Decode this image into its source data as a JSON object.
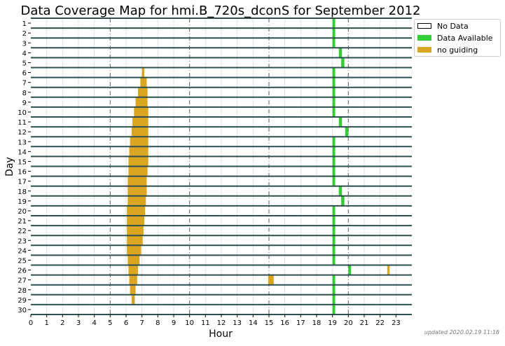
{
  "chart_data": {
    "type": "bar",
    "title": "Data Coverage Map for hmi.B_720s_dconS for September 2012",
    "xlabel": "Hour",
    "ylabel": "Day",
    "xlim": [
      0,
      24
    ],
    "ylim": [
      1,
      30
    ],
    "x_ticks": [
      "0",
      "1",
      "2",
      "3",
      "4",
      "5",
      "6",
      "7",
      "8",
      "9",
      "10",
      "11",
      "12",
      "13",
      "14",
      "15",
      "16",
      "17",
      "18",
      "19",
      "20",
      "21",
      "22",
      "23"
    ],
    "y_ticks": [
      "1",
      "2",
      "3",
      "4",
      "5",
      "6",
      "7",
      "8",
      "9",
      "10",
      "11",
      "12",
      "13",
      "14",
      "15",
      "16",
      "17",
      "18",
      "19",
      "20",
      "21",
      "22",
      "23",
      "24",
      "25",
      "26",
      "27",
      "28",
      "29",
      "30"
    ],
    "grid": true,
    "legend": {
      "placement": "outside-top-right",
      "entries": [
        {
          "label": "No Data",
          "color": "#ffffff"
        },
        {
          "label": "Data Available",
          "color": "#32cd32"
        },
        {
          "label": "no guiding",
          "color": "#daa520"
        }
      ]
    },
    "series": [
      {
        "name": "Data Available",
        "color": "#32cd32",
        "intervals": [
          [
            1,
            19.0,
            19.17
          ],
          [
            2,
            19.0,
            19.17
          ],
          [
            3,
            19.0,
            19.17
          ],
          [
            4,
            19.4,
            19.6
          ],
          [
            5,
            19.55,
            19.75
          ],
          [
            6,
            19.0,
            19.17
          ],
          [
            7,
            19.0,
            19.17
          ],
          [
            8,
            19.0,
            19.17
          ],
          [
            9,
            19.0,
            19.17
          ],
          [
            10,
            19.0,
            19.17
          ],
          [
            11,
            19.4,
            19.6
          ],
          [
            12,
            19.8,
            20.0
          ],
          [
            13,
            19.0,
            19.17
          ],
          [
            14,
            19.0,
            19.17
          ],
          [
            15,
            19.0,
            19.17
          ],
          [
            16,
            19.0,
            19.17
          ],
          [
            17,
            19.0,
            19.17
          ],
          [
            18,
            19.4,
            19.6
          ],
          [
            19,
            19.55,
            19.75
          ],
          [
            20,
            19.0,
            19.17
          ],
          [
            21,
            19.0,
            19.17
          ],
          [
            22,
            19.0,
            19.17
          ],
          [
            23,
            19.0,
            19.17
          ],
          [
            24,
            19.0,
            19.17
          ],
          [
            25,
            19.0,
            19.17
          ],
          [
            26,
            20.0,
            20.17
          ],
          [
            27,
            19.0,
            19.17
          ],
          [
            28,
            19.0,
            19.17
          ],
          [
            29,
            19.0,
            19.17
          ],
          [
            30,
            19.0,
            19.17
          ]
        ]
      },
      {
        "name": "no guiding",
        "color": "#daa520",
        "intervals": [
          [
            6,
            7.0,
            7.15
          ],
          [
            7,
            6.9,
            7.3
          ],
          [
            8,
            6.75,
            7.35
          ],
          [
            9,
            6.6,
            7.35
          ],
          [
            10,
            6.5,
            7.4
          ],
          [
            11,
            6.4,
            7.4
          ],
          [
            12,
            6.35,
            7.4
          ],
          [
            13,
            6.25,
            7.4
          ],
          [
            14,
            6.2,
            7.4
          ],
          [
            15,
            6.15,
            7.4
          ],
          [
            16,
            6.15,
            7.35
          ],
          [
            17,
            6.1,
            7.3
          ],
          [
            18,
            6.1,
            7.3
          ],
          [
            19,
            6.1,
            7.25
          ],
          [
            20,
            6.05,
            7.2
          ],
          [
            21,
            6.05,
            7.15
          ],
          [
            22,
            6.05,
            7.1
          ],
          [
            23,
            6.05,
            7.05
          ],
          [
            24,
            6.05,
            6.95
          ],
          [
            25,
            6.1,
            6.85
          ],
          [
            26,
            6.15,
            6.75
          ],
          [
            26,
            22.45,
            22.6
          ],
          [
            27,
            6.2,
            6.7
          ],
          [
            27,
            14.95,
            15.3
          ],
          [
            28,
            6.25,
            6.6
          ],
          [
            29,
            6.35,
            6.55
          ]
        ]
      }
    ]
  },
  "footer": {
    "updated": "updated 2020.02.19 11:18"
  }
}
